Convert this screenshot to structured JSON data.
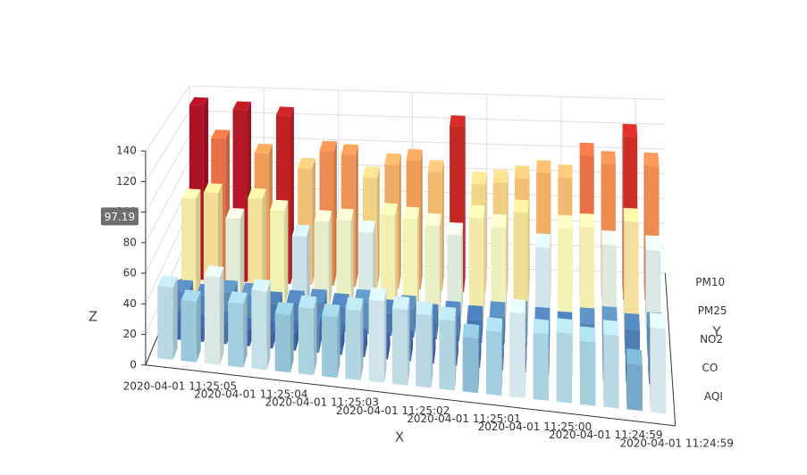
{
  "chart_data": {
    "type": "bar3d",
    "x_axis_name": "X",
    "y_axis_name": "Y",
    "z_axis_name": "Z",
    "x_categories": [
      "2020-04-01 11:25:05",
      null,
      null,
      "2020-04-01 11:25:04",
      null,
      null,
      "2020-04-01 11:25:03",
      null,
      null,
      "2020-04-01 11:25:02",
      null,
      null,
      "2020-04-01 11:25:01",
      null,
      null,
      "2020-04-01 11:25:00",
      null,
      null,
      "2020-04-01 11:24:59",
      null,
      null,
      "2020-04-01 11:24:59"
    ],
    "series": [
      {
        "name": "AQI",
        "values": [
          48,
          40,
          58,
          42,
          52,
          38,
          44,
          40,
          46,
          54,
          50,
          48,
          46,
          36,
          42,
          56,
          44,
          46,
          42,
          48,
          30,
          56
        ]
      },
      {
        "name": "CO",
        "values": [
          12,
          10,
          14,
          11,
          10,
          12,
          18,
          14,
          10,
          9,
          12,
          8,
          10,
          9,
          12,
          10,
          8,
          11,
          12,
          9,
          10,
          8
        ]
      },
      {
        "name": "NO2",
        "values": [
          20,
          18,
          22,
          21,
          16,
          18,
          20,
          18,
          22,
          16,
          20,
          15,
          18,
          16,
          20,
          22,
          18,
          16,
          20,
          22,
          18,
          20
        ]
      },
      {
        "name": "PM25",
        "values": [
          75,
          80,
          62,
          78,
          70,
          52,
          64,
          66,
          58,
          72,
          70,
          66,
          60,
          74,
          68,
          80,
          55,
          70,
          72,
          60,
          78,
          58
        ]
      },
      {
        "name": "PM10",
        "values": [
          135,
          110,
          133,
          100,
          130,
          90,
          104,
          102,
          85,
          96,
          100,
          92,
          128,
          84,
          86,
          90,
          95,
          92,
          110,
          104,
          126,
          104
        ]
      }
    ],
    "zlim": [
      0,
      140
    ],
    "zticks": [
      0,
      20,
      40,
      60,
      80,
      100,
      120,
      140
    ],
    "axis_pointer": 97.19,
    "visual_map_colors": [
      "#313695",
      "#4575b4",
      "#74add1",
      "#abd9e9",
      "#e0f3f8",
      "#ffffbf",
      "#fee090",
      "#fdae61",
      "#f46d43",
      "#d73027",
      "#a50026"
    ],
    "grid": true
  }
}
